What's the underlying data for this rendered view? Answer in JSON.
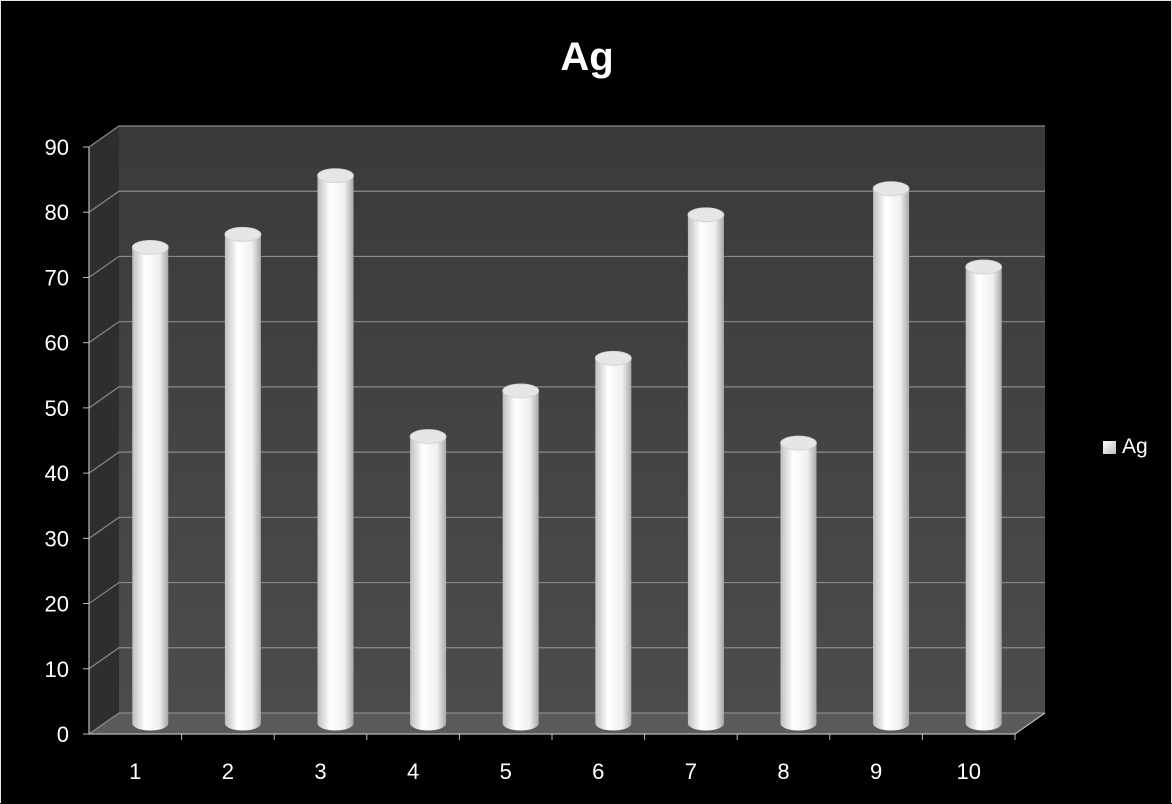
{
  "chart_data": {
    "type": "bar",
    "title": "Ag",
    "categories": [
      "1",
      "2",
      "3",
      "4",
      "5",
      "6",
      "7",
      "8",
      "9",
      "10"
    ],
    "series": [
      {
        "name": "Ag",
        "values": [
          73,
          75,
          84,
          44,
          51,
          56,
          78,
          43,
          82,
          70
        ]
      }
    ],
    "ylim": [
      0,
      90
    ],
    "yticks": [
      "0",
      "10",
      "20",
      "30",
      "40",
      "50",
      "60",
      "70",
      "80",
      "90"
    ],
    "xlabel": "",
    "ylabel": "",
    "grid": true,
    "legend_position": "right",
    "style": "3d-cylinder",
    "colors": {
      "background": "#000000",
      "bar": "#f2f2f2",
      "text": "#ffffff",
      "grid": "#8a8a8a",
      "plot_back": "#474747"
    }
  }
}
